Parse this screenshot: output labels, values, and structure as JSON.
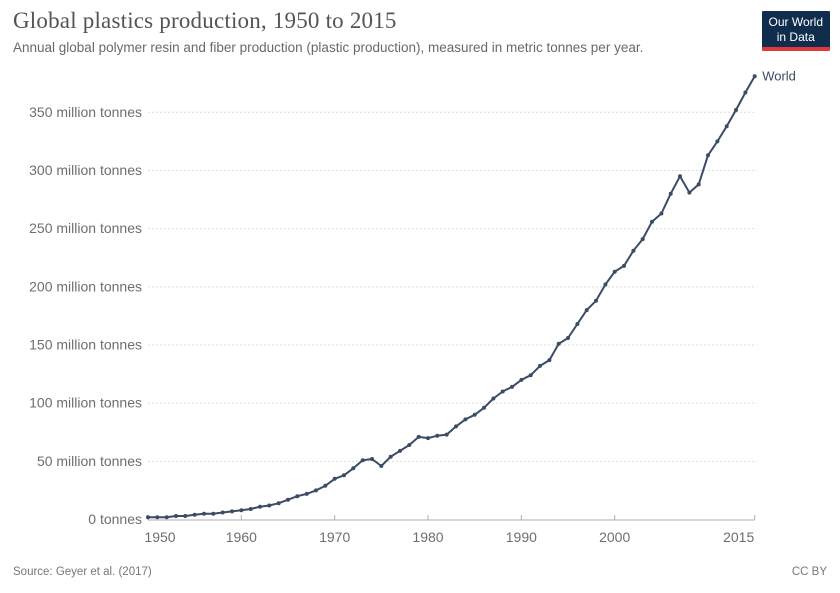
{
  "header": {
    "title": "Global plastics production, 1950 to 2015",
    "subtitle": "Annual global polymer resin and fiber production (plastic production), measured in metric tonnes per year.",
    "logo": {
      "line1": "Our World",
      "line2": "in Data"
    }
  },
  "chart_data": {
    "type": "line",
    "title": "Global plastics production, 1950 to 2015",
    "xlabel": "",
    "ylabel": "",
    "xlim": [
      1950,
      2015
    ],
    "ylim": [
      0,
      390
    ],
    "grid": "horizontal-dashed",
    "legend_position": "line-end",
    "x_ticks": [
      1950,
      1960,
      1970,
      1980,
      1990,
      2000,
      2015
    ],
    "x_tick_labels": [
      "1950",
      "1960",
      "1970",
      "1980",
      "1990",
      "2000",
      "2015"
    ],
    "y_ticks": [
      0,
      50,
      100,
      150,
      200,
      250,
      300,
      350
    ],
    "y_tick_labels": [
      "0 tonnes",
      "50 million tonnes",
      "100 million tonnes",
      "150 million tonnes",
      "200 million tonnes",
      "250 million tonnes",
      "300 million tonnes",
      "350 million tonnes"
    ],
    "x": [
      1950,
      1951,
      1952,
      1953,
      1954,
      1955,
      1956,
      1957,
      1958,
      1959,
      1960,
      1961,
      1962,
      1963,
      1964,
      1965,
      1966,
      1967,
      1968,
      1969,
      1970,
      1971,
      1972,
      1973,
      1974,
      1975,
      1976,
      1977,
      1978,
      1979,
      1980,
      1981,
      1982,
      1983,
      1984,
      1985,
      1986,
      1987,
      1988,
      1989,
      1990,
      1991,
      1992,
      1993,
      1994,
      1995,
      1996,
      1997,
      1998,
      1999,
      2000,
      2001,
      2002,
      2003,
      2004,
      2005,
      2006,
      2007,
      2008,
      2009,
      2010,
      2011,
      2012,
      2013,
      2014,
      2015
    ],
    "series": [
      {
        "name": "World",
        "unit": "million tonnes",
        "values": [
          2,
          2,
          2,
          3,
          3,
          4,
          5,
          5,
          6,
          7,
          8,
          9,
          11,
          12,
          14,
          17,
          20,
          22,
          25,
          29,
          35,
          38,
          44,
          51,
          52,
          46,
          54,
          59,
          64,
          71,
          70,
          72,
          73,
          80,
          86,
          90,
          96,
          104,
          110,
          114,
          120,
          124,
          132,
          137,
          151,
          156,
          168,
          180,
          188,
          202,
          213,
          218,
          231,
          241,
          256,
          263,
          280,
          295,
          281,
          288,
          313,
          325,
          338,
          352,
          367,
          381
        ]
      }
    ]
  },
  "colors": {
    "line": "#3b4c64",
    "series_label": "#3b4c64",
    "grid": "#dddddd",
    "axis": "#adadad",
    "tick_text": "#6e6e6e",
    "title_text": "#545454",
    "subtitle_text": "#696969",
    "footer_text": "#777777",
    "logo_bg": "#102d4e",
    "logo_red": "#dc3a3c"
  },
  "footer": {
    "source": "Source: Geyer et al. (2017)",
    "license": "CC BY"
  }
}
